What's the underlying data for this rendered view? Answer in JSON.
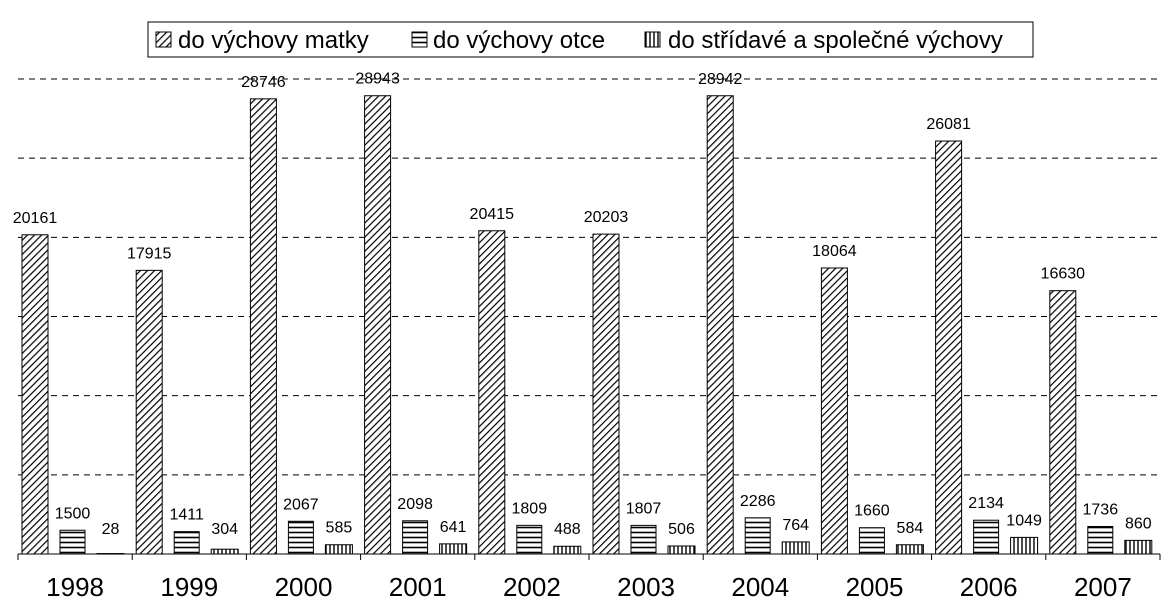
{
  "chart_data": {
    "type": "bar",
    "title": "",
    "xlabel": "",
    "ylabel": "",
    "ylim": [
      0,
      30000
    ],
    "grid": true,
    "legend_position": "top",
    "categories": [
      "1998",
      "1999",
      "2000",
      "2001",
      "2002",
      "2003",
      "2004",
      "2005",
      "2006",
      "2007"
    ],
    "series": [
      {
        "name": "do výchovy matky",
        "pattern": "diagonal",
        "values": [
          20161,
          17915,
          28746,
          28943,
          20415,
          20203,
          28942,
          18064,
          26081,
          16630
        ]
      },
      {
        "name": "do výchovy otce",
        "pattern": "horizontal",
        "values": [
          1500,
          1411,
          2067,
          2098,
          1809,
          1807,
          2286,
          1660,
          2134,
          1736
        ]
      },
      {
        "name": "do střídavé a společné výchovy",
        "pattern": "vertical",
        "values": [
          28,
          304,
          585,
          641,
          488,
          506,
          764,
          584,
          1049,
          860
        ]
      }
    ]
  }
}
